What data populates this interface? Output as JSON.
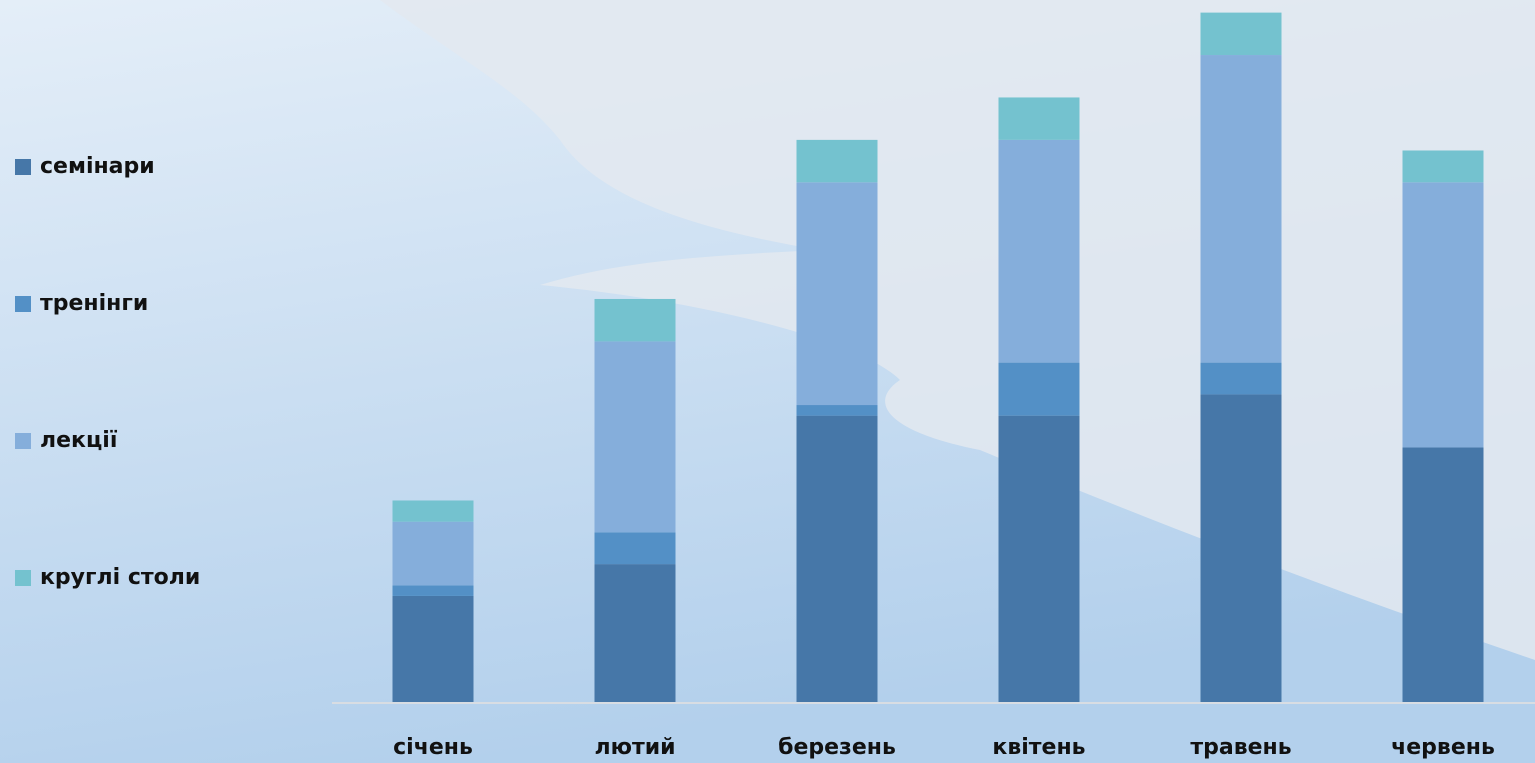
{
  "chart_data": {
    "type": "bar",
    "stacked": true,
    "categories": [
      "січень",
      "лютий",
      "березень",
      "квітень",
      "травень",
      "червень"
    ],
    "series": [
      {
        "name": "семінари",
        "color": "#4677a8",
        "values": [
          10,
          13,
          27,
          27,
          29,
          24
        ]
      },
      {
        "name": "тренінги",
        "color": "#5390c6",
        "values": [
          1,
          3,
          1,
          5,
          3,
          0
        ]
      },
      {
        "name": "лекції",
        "color": "#85aedb",
        "values": [
          6,
          18,
          21,
          21,
          29,
          25
        ]
      },
      {
        "name": "круглі столи",
        "color": "#74c2cf",
        "values": [
          2,
          4,
          4,
          4,
          4,
          3
        ]
      }
    ],
    "ylim": [
      0,
      66
    ],
    "legend": "left"
  }
}
